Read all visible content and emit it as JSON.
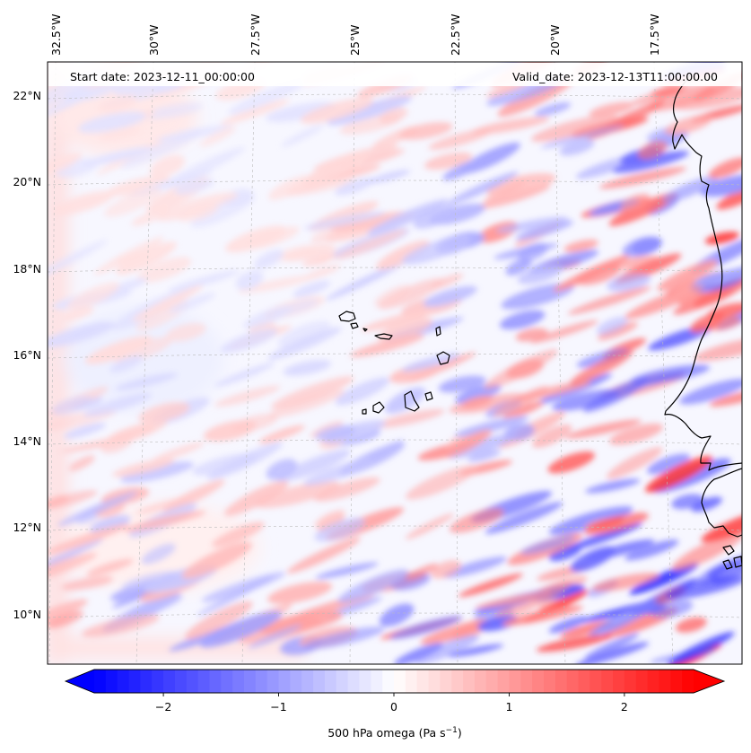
{
  "map": {
    "start_label": "Start date: 2023-12-11_00:00:00",
    "valid_label": "Valid_date: 2023-12-13T11:00:00.00",
    "lon_labels": [
      "32.5°W",
      "30°W",
      "27.5°W",
      "25°W",
      "22.5°W",
      "20°W",
      "17.5°W"
    ],
    "lat_labels": [
      "22°N",
      "20°N",
      "18°N",
      "16°N",
      "14°N",
      "12°N",
      "10°N"
    ],
    "extent": {
      "lon_min": -33.0,
      "lon_max": -15.9,
      "lat_min": 8.9,
      "lat_max": 22.8
    },
    "field": "500 hPa omega",
    "grid": true,
    "coastline_color": "#000000"
  },
  "colorbar": {
    "label_prefix": "500 hPa omega (Pa s",
    "label_exp": "−1",
    "label_suffix": ")",
    "ticks": [
      "−2",
      "−1",
      "0",
      "1",
      "2"
    ],
    "tick_values": [
      -2,
      -1,
      0,
      1,
      2
    ],
    "range": [
      -2.6,
      2.6
    ],
    "cmap": "bwr",
    "colors": {
      "neg": "#0000ff",
      "mid": "#ffffff",
      "pos": "#ff0000"
    },
    "extend": "both"
  }
}
